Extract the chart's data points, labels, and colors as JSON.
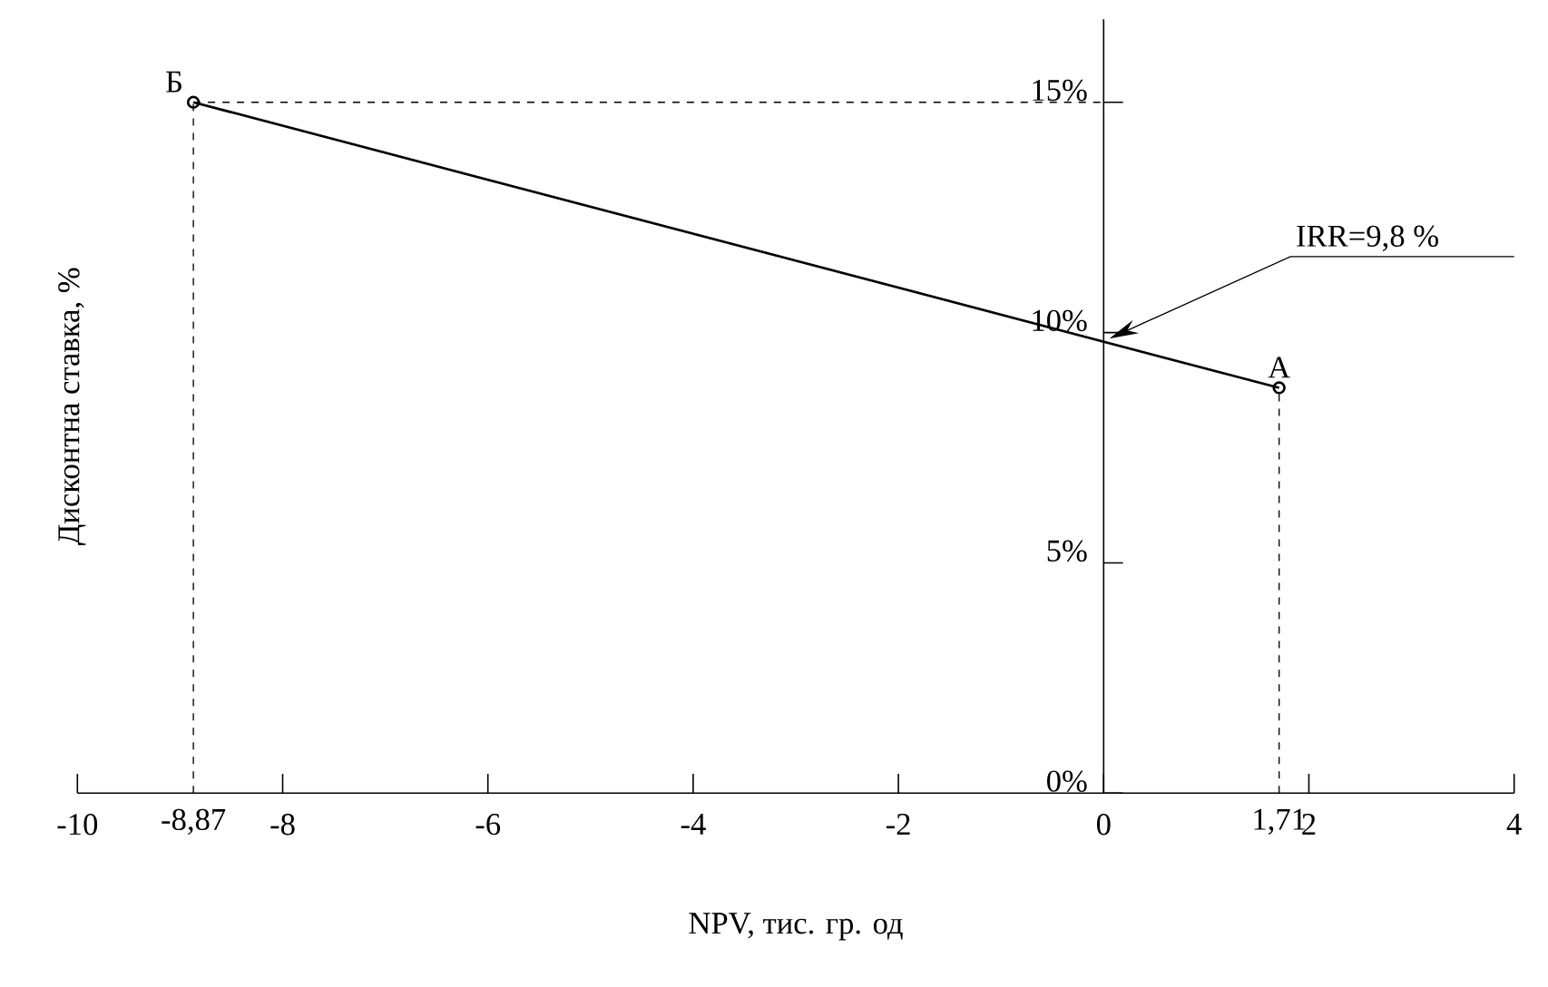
{
  "chart_data": {
    "type": "line",
    "xlabel": "NPV, тис. гр. од",
    "ylabel": "Дисконтна ставка, %",
    "x": [
      -8.87,
      1.71
    ],
    "series": [
      {
        "color": "#000000",
        "values": [
          15,
          8.8
        ]
      }
    ],
    "marker": "circle",
    "line_style": "solid",
    "xlim": [
      -10,
      4
    ],
    "ylim": [
      0,
      16.8
    ],
    "xticks": [
      {
        "value": -10,
        "label": "-10"
      },
      {
        "value": -8.87,
        "label": "-8,87"
      },
      {
        "value": -8,
        "label": "-8"
      },
      {
        "value": -6,
        "label": "-6"
      },
      {
        "value": -4,
        "label": "-4"
      },
      {
        "value": -2,
        "label": "-2"
      },
      {
        "value": 0,
        "label": "0"
      },
      {
        "value": 1.71,
        "label": "1,71"
      },
      {
        "value": 2,
        "label": "2"
      },
      {
        "value": 4,
        "label": "4"
      }
    ],
    "yticks": [
      {
        "value": 0,
        "label": "0%"
      },
      {
        "value": 5,
        "label": "5%"
      },
      {
        "value": 10,
        "label": "10%"
      },
      {
        "value": 15,
        "label": "15%"
      }
    ],
    "ref_lines": [
      {
        "axis": "x",
        "value": -8.87,
        "line_style": "dashed"
      },
      {
        "axis": "x",
        "value": 1.71,
        "line_style": "dashed"
      },
      {
        "axis": "y",
        "value": 15,
        "line_style": "dashed"
      }
    ],
    "annotations": [
      {
        "text": "Б",
        "x": -8.87,
        "y": 15
      },
      {
        "text": "A",
        "x": 1.71,
        "y": 8.8
      },
      "IRR=9,8 %"
    ],
    "grid": false
  }
}
